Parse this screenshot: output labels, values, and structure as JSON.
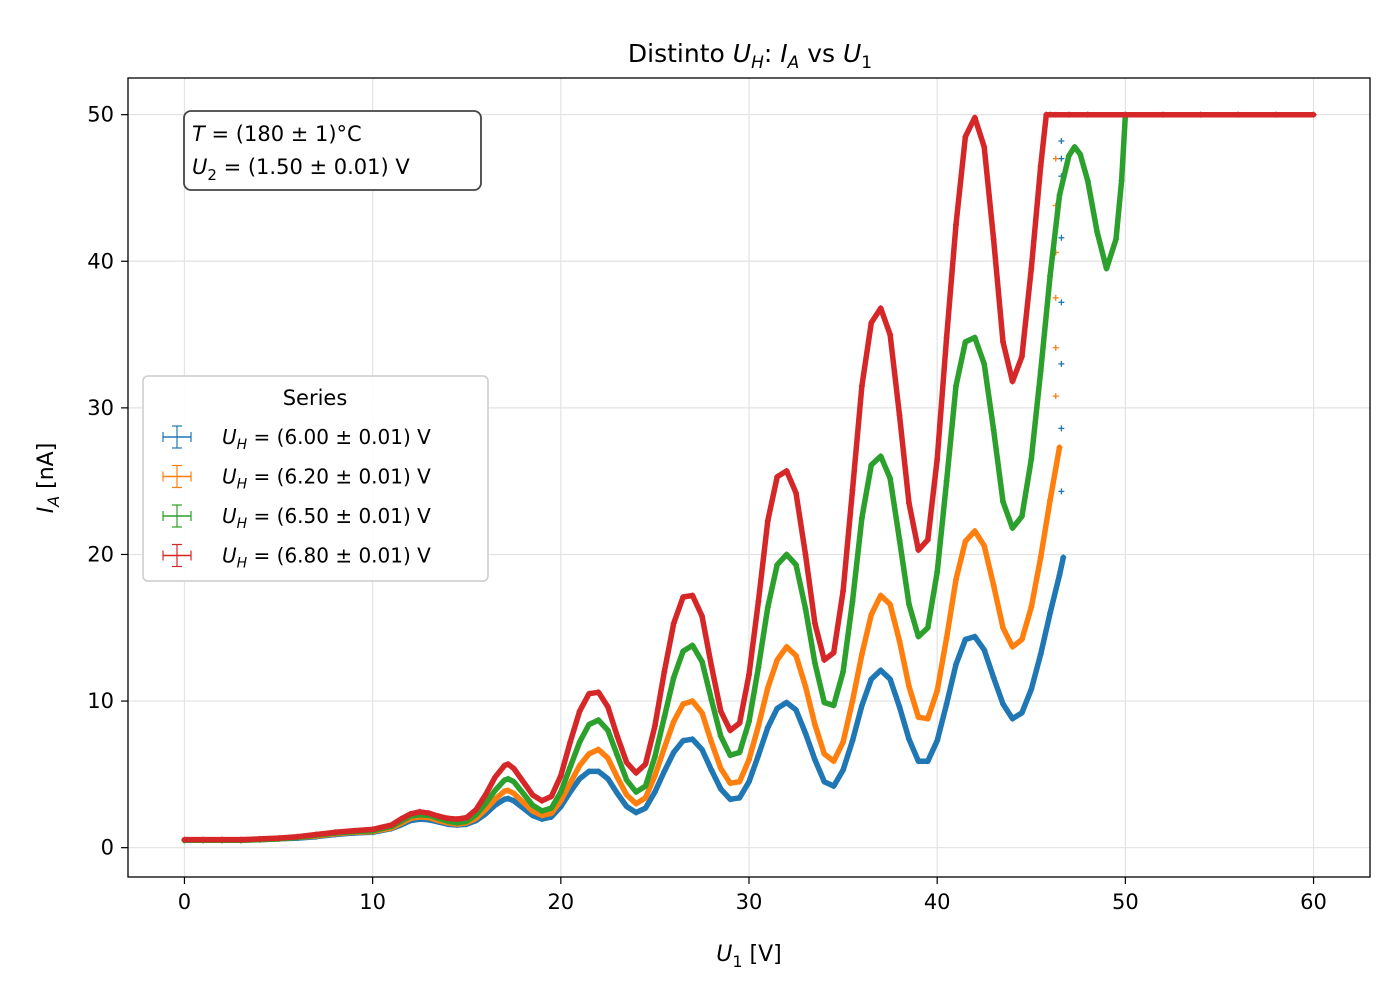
{
  "chart_data": {
    "type": "scatter",
    "title": {
      "prefix": "Distinto ",
      "u": "U",
      "uSub": "H",
      "mid": ": ",
      "i": "I",
      "iSub": "A",
      "vs": " vs ",
      "u1": "U",
      "u1Sub": "1"
    },
    "xlabel": {
      "var": "U",
      "sub": "1",
      "unit": " [V]"
    },
    "ylabel": {
      "var": "I",
      "sub": "A",
      "unit": " [nA]"
    },
    "xlim": [
      -3,
      63
    ],
    "ylim": [
      -2,
      52.5
    ],
    "xticks": [
      "0",
      "10",
      "20",
      "30",
      "40",
      "50",
      "60"
    ],
    "yticks": [
      "0",
      "10",
      "20",
      "30",
      "40",
      "50"
    ],
    "grid": true,
    "legend": {
      "title": "Series",
      "placement": "center-left",
      "entries": [
        {
          "var": "U",
          "sub": "H",
          "text": " = (6.00 ± 0.01) V"
        },
        {
          "var": "U",
          "sub": "H",
          "text": " = (6.20 ± 0.01) V"
        },
        {
          "var": "U",
          "sub": "H",
          "text": " = (6.50 ± 0.01) V"
        },
        {
          "var": "U",
          "sub": "H",
          "text": " = (6.80 ± 0.01) V"
        }
      ]
    },
    "annotation": {
      "placement": "top-left",
      "line1": {
        "var": "T",
        "text": " = (180 ± 1)°C"
      },
      "line2": {
        "var": "U",
        "sub": "2",
        "text": " = (1.50 ± 0.01) V"
      }
    },
    "colors": [
      "#1f77b4",
      "#ff7f0e",
      "#2ca02c",
      "#d62728"
    ],
    "series": [
      {
        "x": [
          0,
          1,
          2,
          3,
          4,
          5,
          6,
          7,
          8,
          9,
          10,
          11,
          11.5,
          12,
          12.5,
          13,
          13.5,
          14,
          14.5,
          15,
          15.5,
          16,
          16.5,
          17,
          17.2,
          17.5,
          18,
          18.5,
          19,
          19.5,
          20,
          20.5,
          21,
          21.5,
          22,
          22.5,
          23,
          23.5,
          24,
          24.5,
          25,
          25.5,
          26,
          26.5,
          27,
          27.5,
          28,
          28.5,
          29,
          29.5,
          30,
          30.5,
          31,
          31.5,
          32,
          32.5,
          33,
          33.5,
          34,
          34.5,
          35,
          35.5,
          36,
          36.5,
          37,
          37.5,
          38,
          38.5,
          39,
          39.5,
          40,
          40.5,
          41,
          41.5,
          42,
          42.5,
          43,
          43.5,
          44,
          44.5,
          45,
          45.5,
          46,
          46.5,
          46.7
        ],
        "y": [
          0.5,
          0.5,
          0.5,
          0.5,
          0.55,
          0.6,
          0.65,
          0.75,
          0.9,
          1.0,
          1.05,
          1.3,
          1.55,
          1.85,
          1.95,
          1.9,
          1.75,
          1.6,
          1.55,
          1.6,
          1.85,
          2.3,
          2.9,
          3.3,
          3.35,
          3.2,
          2.7,
          2.2,
          1.95,
          2.1,
          2.8,
          3.8,
          4.7,
          5.2,
          5.2,
          4.7,
          3.7,
          2.8,
          2.4,
          2.7,
          3.8,
          5.2,
          6.5,
          7.3,
          7.4,
          6.7,
          5.3,
          4.0,
          3.3,
          3.4,
          4.5,
          6.3,
          8.2,
          9.5,
          9.9,
          9.4,
          7.8,
          6.0,
          4.5,
          4.2,
          5.3,
          7.3,
          9.7,
          11.5,
          12.1,
          11.5,
          9.6,
          7.4,
          5.9,
          5.9,
          7.3,
          9.8,
          12.5,
          14.2,
          14.4,
          13.5,
          11.6,
          9.8,
          8.8,
          9.2,
          10.8,
          13.2,
          16.0,
          18.6,
          19.8
        ],
        "extra_x": [
          46.6,
          46.6,
          46.6,
          46.6,
          46.6,
          46.6,
          46.6,
          46.6
        ],
        "extra_y": [
          24.3,
          28.6,
          33.0,
          37.2,
          41.6,
          45.8,
          47.0,
          48.2
        ]
      },
      {
        "x": [
          0,
          1,
          2,
          3,
          4,
          5,
          6,
          7,
          8,
          9,
          10,
          11,
          11.5,
          12,
          12.5,
          13,
          13.5,
          14,
          14.5,
          15,
          15.5,
          16,
          16.5,
          17,
          17.2,
          17.5,
          18,
          18.5,
          19,
          19.5,
          20,
          20.5,
          21,
          21.5,
          22,
          22.5,
          23,
          23.5,
          24,
          24.5,
          25,
          25.5,
          26,
          26.5,
          27,
          27.5,
          28,
          28.5,
          29,
          29.5,
          30,
          30.5,
          31,
          31.5,
          32,
          32.5,
          33,
          33.5,
          34,
          34.5,
          35,
          35.5,
          36,
          36.5,
          37,
          37.5,
          38,
          38.5,
          39,
          39.5,
          40,
          40.5,
          41,
          41.5,
          42,
          42.5,
          43,
          43.5,
          44,
          44.5,
          45,
          45.5,
          46,
          46.5
        ],
        "y": [
          0.5,
          0.5,
          0.5,
          0.5,
          0.55,
          0.6,
          0.7,
          0.8,
          0.95,
          1.05,
          1.1,
          1.35,
          1.65,
          2.0,
          2.1,
          2.05,
          1.85,
          1.7,
          1.6,
          1.7,
          2.0,
          2.6,
          3.3,
          3.85,
          3.9,
          3.7,
          3.1,
          2.5,
          2.2,
          2.35,
          3.2,
          4.4,
          5.6,
          6.4,
          6.7,
          6.1,
          4.8,
          3.6,
          3.0,
          3.4,
          4.9,
          6.8,
          8.6,
          9.8,
          10.0,
          9.2,
          7.2,
          5.4,
          4.4,
          4.5,
          6.0,
          8.3,
          10.9,
          12.8,
          13.7,
          13.1,
          11.0,
          8.4,
          6.4,
          5.9,
          7.2,
          10.0,
          13.2,
          15.9,
          17.2,
          16.6,
          14.1,
          11.0,
          8.9,
          8.8,
          10.7,
          14.3,
          18.3,
          20.9,
          21.6,
          20.6,
          17.9,
          15.0,
          13.7,
          14.2,
          16.4,
          19.8,
          23.7,
          27.3
        ],
        "extra_x": [
          46.3,
          46.3,
          46.3,
          46.3,
          46.3,
          46.3,
          46.3
        ],
        "extra_y": [
          30.8,
          34.1,
          37.5,
          40.6,
          43.8,
          47.0,
          50.0
        ]
      },
      {
        "x": [
          0,
          1,
          2,
          3,
          4,
          5,
          6,
          7,
          8,
          9,
          10,
          11,
          11.5,
          12,
          12.5,
          13,
          13.5,
          14,
          14.5,
          15,
          15.5,
          16,
          16.5,
          17,
          17.2,
          17.5,
          18,
          18.5,
          19,
          19.5,
          20,
          20.5,
          21,
          21.5,
          22,
          22.5,
          23,
          23.5,
          24,
          24.5,
          25,
          25.5,
          26,
          26.5,
          27,
          27.5,
          28,
          28.5,
          29,
          29.5,
          30,
          30.5,
          31,
          31.5,
          32,
          32.5,
          33,
          33.5,
          34,
          34.5,
          35,
          35.5,
          36,
          36.5,
          37,
          37.5,
          38,
          38.5,
          39,
          39.5,
          40,
          40.5,
          41,
          41.5,
          42,
          42.5,
          43,
          43.5,
          44,
          44.5,
          45,
          45.5,
          46,
          46.5,
          47,
          47.3,
          47.6,
          48,
          48.5,
          49,
          49.5,
          49.8,
          50
        ],
        "y": [
          0.5,
          0.5,
          0.5,
          0.5,
          0.55,
          0.6,
          0.7,
          0.85,
          1.0,
          1.1,
          1.15,
          1.45,
          1.8,
          2.15,
          2.25,
          2.2,
          2.0,
          1.8,
          1.7,
          1.8,
          2.25,
          3.0,
          3.9,
          4.6,
          4.7,
          4.5,
          3.7,
          2.9,
          2.5,
          2.7,
          3.8,
          5.5,
          7.2,
          8.4,
          8.7,
          8.0,
          6.3,
          4.6,
          3.8,
          4.2,
          6.2,
          8.9,
          11.6,
          13.4,
          13.8,
          12.7,
          10.1,
          7.6,
          6.3,
          6.5,
          8.6,
          12.3,
          16.4,
          19.3,
          20.0,
          19.3,
          16.3,
          12.6,
          9.9,
          9.7,
          12.0,
          16.8,
          22.5,
          26.1,
          26.7,
          25.2,
          21.0,
          16.6,
          14.4,
          15.0,
          18.8,
          25.0,
          31.5,
          34.5,
          34.8,
          33.0,
          28.5,
          23.6,
          21.8,
          22.6,
          26.5,
          32.5,
          39.0,
          44.5,
          47.2,
          47.8,
          47.3,
          45.5,
          42.0,
          39.5,
          41.5,
          45.5,
          50.0
        ]
      },
      {
        "x": [
          0,
          1,
          2,
          3,
          4,
          5,
          6,
          7,
          8,
          9,
          10,
          11,
          11.5,
          12,
          12.5,
          13,
          13.5,
          14,
          14.5,
          15,
          15.5,
          16,
          16.5,
          17,
          17.2,
          17.5,
          18,
          18.5,
          19,
          19.5,
          20,
          20.5,
          21,
          21.5,
          22,
          22.5,
          23,
          23.5,
          24,
          24.5,
          25,
          25.5,
          26,
          26.5,
          27,
          27.5,
          28,
          28.5,
          29,
          29.5,
          30,
          30.5,
          31,
          31.5,
          32,
          32.5,
          33,
          33.5,
          34,
          34.5,
          35,
          35.5,
          36,
          36.5,
          37,
          37.5,
          38,
          38.5,
          39,
          39.5,
          40,
          40.5,
          41,
          41.5,
          42,
          42.5,
          43,
          43.5,
          44,
          44.5,
          45,
          45.5,
          45.8,
          46,
          47,
          48,
          50,
          52,
          54,
          56,
          58,
          60
        ],
        "y": [
          0.55,
          0.55,
          0.55,
          0.55,
          0.6,
          0.65,
          0.75,
          0.9,
          1.05,
          1.15,
          1.25,
          1.55,
          1.95,
          2.3,
          2.45,
          2.35,
          2.15,
          2.0,
          1.95,
          2.05,
          2.6,
          3.6,
          4.8,
          5.6,
          5.7,
          5.4,
          4.5,
          3.6,
          3.2,
          3.5,
          4.9,
          7.2,
          9.3,
          10.5,
          10.6,
          9.6,
          7.6,
          5.8,
          5.1,
          5.7,
          8.3,
          12.0,
          15.3,
          17.1,
          17.2,
          15.8,
          12.4,
          9.3,
          8.0,
          8.5,
          11.8,
          16.8,
          22.3,
          25.3,
          25.7,
          24.2,
          20.0,
          15.3,
          12.8,
          13.3,
          17.5,
          24.4,
          31.5,
          35.8,
          36.8,
          35.0,
          29.5,
          23.5,
          20.3,
          21.0,
          26.5,
          34.8,
          42.5,
          48.5,
          49.8,
          47.8,
          41.5,
          34.5,
          31.8,
          33.5,
          39.5,
          46.5,
          50.0,
          50.0,
          50.0,
          50.0,
          50.0,
          50.0,
          50.0,
          50.0,
          50.0,
          50.0
        ]
      }
    ]
  }
}
